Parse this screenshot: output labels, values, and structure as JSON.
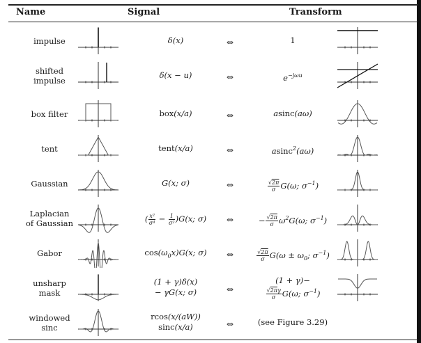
{
  "headers": {
    "name": "Name",
    "signal": "Signal",
    "transform": "Transform"
  },
  "arrow_symbol": "⇔",
  "rows": [
    {
      "name": "impulse",
      "signal": "δ(x)",
      "transform": "1",
      "sig_plot": "impulse-graph",
      "tr_plot": "constant-graph"
    },
    {
      "name": "shifted\nimpulse",
      "signal": "δ(x − u)",
      "transform": "e^{−jωu}",
      "sig_plot": "shifted-impulse-graph",
      "tr_plot": "phase-ramp-graph"
    },
    {
      "name": "box filter",
      "signal": "box(x/a)",
      "transform": "asinc(aω)",
      "sig_plot": "box-graph",
      "tr_plot": "sinc-graph"
    },
    {
      "name": "tent",
      "signal": "tent(x/a)",
      "transform": "asinc²(aω)",
      "sig_plot": "tent-graph",
      "tr_plot": "sinc-squared-graph"
    },
    {
      "name": "Gaussian",
      "signal": "G(x; σ)",
      "transform": "(√2π/σ)G(ω; σ⁻¹)",
      "sig_plot": "gaussian-graph",
      "tr_plot": "gaussian-transform-graph"
    },
    {
      "name": "Laplacian\nof Gaussian",
      "signal": "(x²/σ⁴ − 1/σ²)G(x; σ)",
      "transform": "−(√2π/σ)ω²G(ω; σ⁻¹)",
      "sig_plot": "log-graph",
      "tr_plot": "log-transform-graph"
    },
    {
      "name": "Gabor",
      "signal": "cos(ω₀x)G(x; σ)",
      "transform": "(√2π/σ)G(ω ± ω₀; σ⁻¹)",
      "sig_plot": "gabor-graph",
      "tr_plot": "gabor-transform-graph"
    },
    {
      "name": "unsharp\nmask",
      "signal": "(1 + γ)δ(x)\n− γG(x; σ)",
      "transform": "(1 + γ)−\n(√2πγ/σ)G(ω; σ⁻¹)",
      "sig_plot": "unsharp-graph",
      "tr_plot": "unsharp-transform-graph"
    },
    {
      "name": "windowed\nsinc",
      "signal": "rcos(x/(aW))\nsinc(x/a)",
      "transform": "(see Figure 3.29)",
      "sig_plot": "windowed-sinc-graph",
      "tr_plot": ""
    }
  ]
}
